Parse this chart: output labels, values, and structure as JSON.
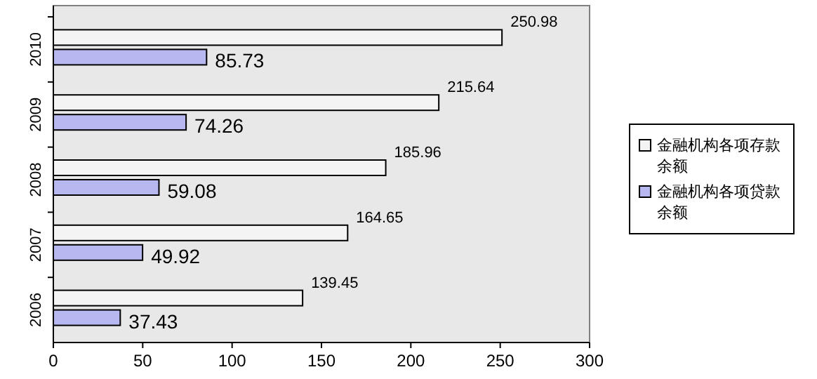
{
  "chart_data": {
    "type": "bar",
    "orientation": "horizontal",
    "categories": [
      "2010",
      "2009",
      "2008",
      "2007",
      "2006"
    ],
    "series": [
      {
        "name": "金融机构各项存款余额",
        "color": "#f4f4f4",
        "values": [
          250.98,
          215.64,
          185.96,
          164.65,
          139.45
        ]
      },
      {
        "name": "金融机构各项贷款余额",
        "color": "#b8b8f0",
        "values": [
          85.73,
          74.26,
          59.08,
          49.92,
          37.43
        ]
      }
    ],
    "xlim": [
      0,
      300
    ],
    "xticks": [
      0,
      50,
      100,
      150,
      200,
      250,
      300
    ],
    "data_labels": true,
    "legend": "right"
  }
}
